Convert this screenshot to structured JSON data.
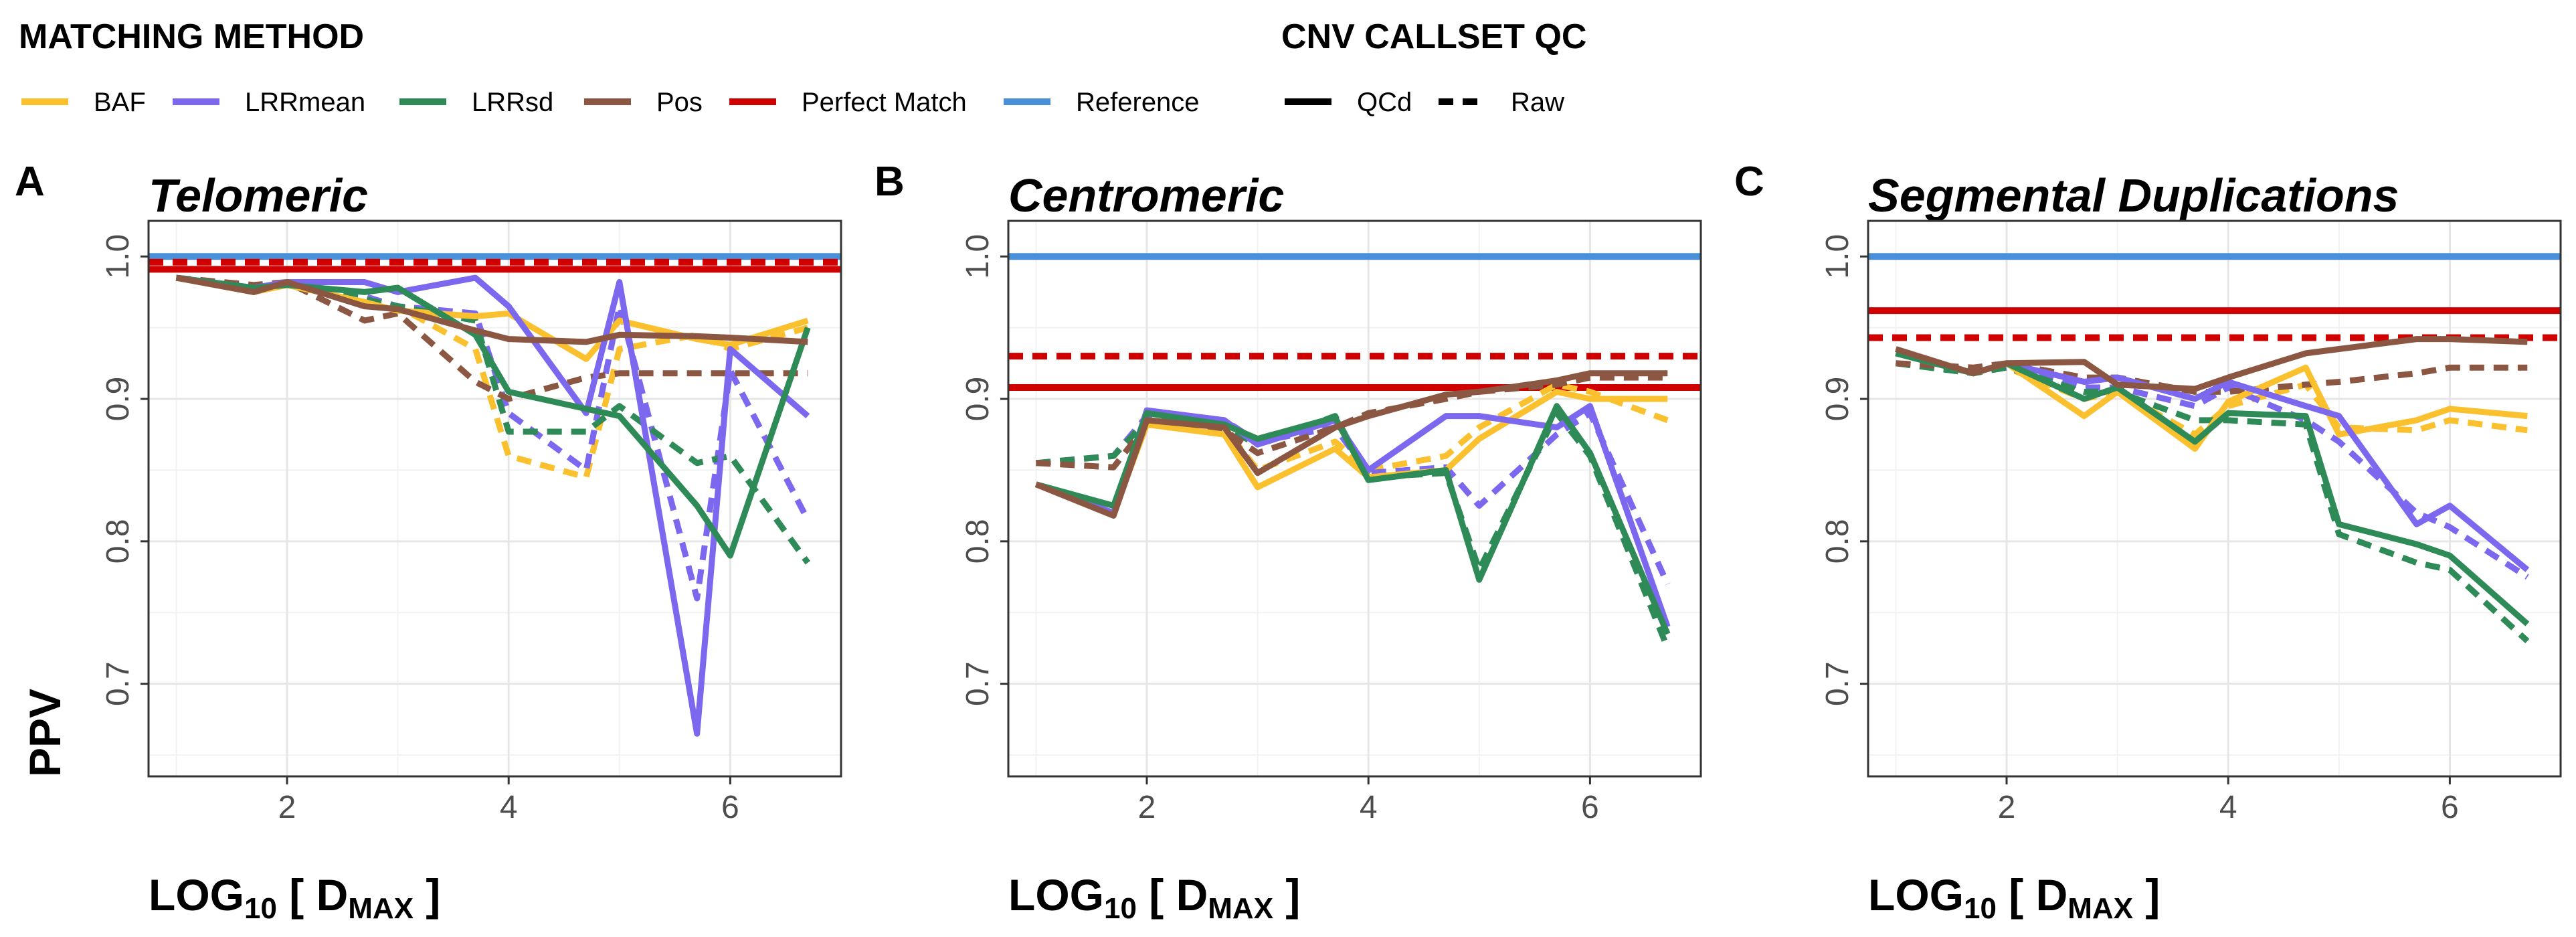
{
  "legend": {
    "method_title": "MATCHING METHOD",
    "qc_title": "CNV CALLSET QC",
    "methods": [
      {
        "label": "BAF",
        "color": "#FBC02D"
      },
      {
        "label": "LRRmean",
        "color": "#7B68EE"
      },
      {
        "label": "LRRsd",
        "color": "#2E8B57"
      },
      {
        "label": "Pos",
        "color": "#8B5742"
      },
      {
        "label": "Perfect Match",
        "color": "#D10000"
      },
      {
        "label": "Reference",
        "color": "#4A90D9"
      }
    ],
    "linetypes": [
      {
        "label": "QCd",
        "style": "solid"
      },
      {
        "label": "Raw",
        "style": "dashed"
      }
    ]
  },
  "ylabel": "PPV",
  "xlabel": {
    "main": "LOG",
    "sub": "10",
    "bracket_open": " [ D",
    "sub2": "MAX",
    "bracket_close": " ]"
  },
  "chart_data": [
    {
      "type": "line",
      "panel": "A",
      "title": "Telomeric",
      "xlim": [
        0.75,
        7.0
      ],
      "ylim": [
        0.635,
        1.025
      ],
      "x_ticks": [
        2,
        4,
        6
      ],
      "y_ticks": [
        0.7,
        0.8,
        0.9,
        1.0
      ],
      "y_tick_labels": [
        "0.7",
        "0.8",
        "0.9",
        "1.0"
      ],
      "grid": true,
      "reference_lines": [
        {
          "name": "Reference",
          "y": 1.0,
          "style": "solid"
        },
        {
          "name": "Perfect Match",
          "y": 0.991,
          "style": "solid"
        },
        {
          "name": "Perfect Match",
          "y": 0.996,
          "style": "dashed"
        }
      ],
      "series": [
        {
          "name": "BAF",
          "style": "dashed",
          "x": [
            1.0,
            1.7,
            2.0,
            2.7,
            3.0,
            3.7,
            4.0,
            4.7,
            5.0,
            5.7,
            6.0,
            6.7
          ],
          "y": [
            0.985,
            0.978,
            0.98,
            0.968,
            0.965,
            0.935,
            0.86,
            0.845,
            0.935,
            0.945,
            0.935,
            0.95
          ]
        },
        {
          "name": "LRRmean",
          "style": "dashed",
          "x": [
            1.0,
            1.7,
            2.0,
            2.7,
            3.0,
            3.7,
            4.0,
            4.7,
            5.0,
            5.7,
            6.0,
            6.7
          ],
          "y": [
            0.985,
            0.978,
            0.98,
            0.972,
            0.965,
            0.96,
            0.89,
            0.85,
            0.965,
            0.76,
            0.92,
            0.815
          ]
        },
        {
          "name": "LRRsd",
          "style": "dashed",
          "x": [
            1.0,
            1.7,
            2.0,
            2.7,
            3.0,
            3.7,
            4.0,
            4.7,
            5.0,
            5.7,
            6.0,
            6.7
          ],
          "y": [
            0.985,
            0.978,
            0.98,
            0.97,
            0.965,
            0.955,
            0.877,
            0.877,
            0.895,
            0.855,
            0.86,
            0.785
          ]
        },
        {
          "name": "Pos",
          "style": "dashed",
          "x": [
            1.0,
            1.7,
            2.0,
            2.7,
            3.0,
            3.7,
            4.0,
            4.7,
            5.0,
            5.7,
            6.0,
            6.7
          ],
          "y": [
            0.985,
            0.98,
            0.982,
            0.955,
            0.96,
            0.912,
            0.9,
            0.915,
            0.918,
            0.918,
            0.918,
            0.918
          ]
        },
        {
          "name": "BAF",
          "style": "solid",
          "x": [
            1.0,
            1.7,
            2.0,
            2.7,
            3.0,
            3.7,
            4.0,
            4.7,
            5.0,
            5.7,
            6.0,
            6.7
          ],
          "y": [
            0.985,
            0.975,
            0.98,
            0.968,
            0.962,
            0.958,
            0.96,
            0.928,
            0.955,
            0.942,
            0.938,
            0.955
          ]
        },
        {
          "name": "LRRmean",
          "style": "solid",
          "x": [
            1.0,
            1.7,
            2.0,
            2.7,
            3.0,
            3.7,
            4.0,
            4.7,
            5.0,
            5.7,
            6.0,
            6.7
          ],
          "y": [
            0.985,
            0.978,
            0.982,
            0.982,
            0.975,
            0.985,
            0.965,
            0.89,
            0.982,
            0.665,
            0.935,
            0.888
          ]
        },
        {
          "name": "LRRsd",
          "style": "solid",
          "x": [
            1.0,
            1.7,
            2.0,
            2.7,
            3.0,
            3.7,
            4.0,
            4.7,
            5.0,
            5.7,
            6.0,
            6.7
          ],
          "y": [
            0.985,
            0.978,
            0.98,
            0.975,
            0.978,
            0.945,
            0.905,
            0.893,
            0.888,
            0.825,
            0.79,
            0.95
          ]
        },
        {
          "name": "Pos",
          "style": "solid",
          "x": [
            1.0,
            1.7,
            2.0,
            2.7,
            3.0,
            3.7,
            4.0,
            4.7,
            5.0,
            5.7,
            6.0,
            6.7
          ],
          "y": [
            0.985,
            0.975,
            0.982,
            0.965,
            0.963,
            0.948,
            0.942,
            0.94,
            0.945,
            0.944,
            0.943,
            0.94
          ]
        }
      ]
    },
    {
      "type": "line",
      "panel": "B",
      "title": "Centromeric",
      "xlim": [
        0.75,
        7.0
      ],
      "ylim": [
        0.635,
        1.025
      ],
      "x_ticks": [
        2,
        4,
        6
      ],
      "y_ticks": [
        0.7,
        0.8,
        0.9,
        1.0
      ],
      "y_tick_labels": [
        "0.7",
        "0.8",
        "0.9",
        "1.0"
      ],
      "grid": true,
      "reference_lines": [
        {
          "name": "Reference",
          "y": 1.0,
          "style": "solid"
        },
        {
          "name": "Perfect Match",
          "y": 0.908,
          "style": "solid"
        },
        {
          "name": "Perfect Match",
          "y": 0.93,
          "style": "dashed"
        }
      ],
      "series": [
        {
          "name": "BAF",
          "style": "dashed",
          "x": [
            1.0,
            1.7,
            2.0,
            2.7,
            3.0,
            3.7,
            4.0,
            4.7,
            5.0,
            5.7,
            6.0,
            6.7
          ],
          "y": [
            0.855,
            0.86,
            0.885,
            0.88,
            0.85,
            0.87,
            0.85,
            0.86,
            0.88,
            0.91,
            0.905,
            0.885
          ]
        },
        {
          "name": "LRRmean",
          "style": "dashed",
          "x": [
            1.0,
            1.7,
            2.0,
            2.7,
            3.0,
            3.7,
            4.0,
            4.7,
            5.0,
            5.7,
            6.0,
            6.7
          ],
          "y": [
            0.855,
            0.86,
            0.888,
            0.885,
            0.87,
            0.88,
            0.848,
            0.852,
            0.825,
            0.875,
            0.89,
            0.77
          ]
        },
        {
          "name": "LRRsd",
          "style": "dashed",
          "x": [
            1.0,
            1.7,
            2.0,
            2.7,
            3.0,
            3.7,
            4.0,
            4.7,
            5.0,
            5.7,
            6.0,
            6.7
          ],
          "y": [
            0.855,
            0.86,
            0.885,
            0.88,
            0.868,
            0.888,
            0.845,
            0.848,
            0.78,
            0.89,
            0.86,
            0.725
          ]
        },
        {
          "name": "Pos",
          "style": "dashed",
          "x": [
            1.0,
            1.7,
            2.0,
            2.7,
            3.0,
            3.7,
            4.0,
            4.7,
            5.0,
            5.7,
            6.0,
            6.7
          ],
          "y": [
            0.855,
            0.852,
            0.882,
            0.878,
            0.862,
            0.88,
            0.89,
            0.9,
            0.905,
            0.91,
            0.915,
            0.915
          ]
        },
        {
          "name": "BAF",
          "style": "solid",
          "x": [
            1.0,
            1.7,
            2.0,
            2.7,
            3.0,
            3.7,
            4.0,
            4.7,
            5.0,
            5.7,
            6.0,
            6.7
          ],
          "y": [
            0.84,
            0.82,
            0.882,
            0.875,
            0.838,
            0.865,
            0.845,
            0.85,
            0.872,
            0.905,
            0.9,
            0.9
          ]
        },
        {
          "name": "LRRmean",
          "style": "solid",
          "x": [
            1.0,
            1.7,
            2.0,
            2.7,
            3.0,
            3.7,
            4.0,
            4.7,
            5.0,
            5.7,
            6.0,
            6.7
          ],
          "y": [
            0.84,
            0.82,
            0.892,
            0.885,
            0.868,
            0.885,
            0.85,
            0.888,
            0.888,
            0.88,
            0.895,
            0.74
          ]
        },
        {
          "name": "LRRsd",
          "style": "solid",
          "x": [
            1.0,
            1.7,
            2.0,
            2.7,
            3.0,
            3.7,
            4.0,
            4.7,
            5.0,
            5.7,
            6.0,
            6.7
          ],
          "y": [
            0.84,
            0.825,
            0.89,
            0.882,
            0.872,
            0.887,
            0.843,
            0.85,
            0.773,
            0.895,
            0.862,
            0.735
          ]
        },
        {
          "name": "Pos",
          "style": "solid",
          "x": [
            1.0,
            1.7,
            2.0,
            2.7,
            3.0,
            3.7,
            4.0,
            4.7,
            5.0,
            5.7,
            6.0,
            6.7
          ],
          "y": [
            0.84,
            0.818,
            0.885,
            0.88,
            0.848,
            0.88,
            0.888,
            0.903,
            0.905,
            0.913,
            0.918,
            0.918
          ]
        }
      ]
    },
    {
      "type": "line",
      "panel": "C",
      "title": "Segmental Duplications",
      "xlim": [
        0.75,
        7.0
      ],
      "ylim": [
        0.635,
        1.025
      ],
      "x_ticks": [
        2,
        4,
        6
      ],
      "y_ticks": [
        0.7,
        0.8,
        0.9,
        1.0
      ],
      "y_tick_labels": [
        "0.7",
        "0.8",
        "0.9",
        "1.0"
      ],
      "grid": true,
      "reference_lines": [
        {
          "name": "Reference",
          "y": 1.0,
          "style": "solid"
        },
        {
          "name": "Perfect Match",
          "y": 0.962,
          "style": "solid"
        },
        {
          "name": "Perfect Match",
          "y": 0.943,
          "style": "dashed"
        }
      ],
      "series": [
        {
          "name": "BAF",
          "style": "dashed",
          "x": [
            1.0,
            1.7,
            2.0,
            2.7,
            3.0,
            3.7,
            4.0,
            4.7,
            5.0,
            5.7,
            6.0,
            6.7
          ],
          "y": [
            0.925,
            0.92,
            0.922,
            0.9,
            0.905,
            0.875,
            0.895,
            0.91,
            0.88,
            0.878,
            0.885,
            0.878
          ]
        },
        {
          "name": "LRRmean",
          "style": "dashed",
          "x": [
            1.0,
            1.7,
            2.0,
            2.7,
            3.0,
            3.7,
            4.0,
            4.7,
            5.0,
            5.7,
            6.0,
            6.7
          ],
          "y": [
            0.925,
            0.92,
            0.922,
            0.908,
            0.908,
            0.895,
            0.908,
            0.885,
            0.87,
            0.82,
            0.81,
            0.775
          ]
        },
        {
          "name": "LRRsd",
          "style": "dashed",
          "x": [
            1.0,
            1.7,
            2.0,
            2.7,
            3.0,
            3.7,
            4.0,
            4.7,
            5.0,
            5.7,
            6.0,
            6.7
          ],
          "y": [
            0.925,
            0.918,
            0.922,
            0.905,
            0.905,
            0.885,
            0.885,
            0.882,
            0.805,
            0.785,
            0.78,
            0.73
          ]
        },
        {
          "name": "Pos",
          "style": "dashed",
          "x": [
            1.0,
            1.7,
            2.0,
            2.7,
            3.0,
            3.7,
            4.0,
            4.7,
            5.0,
            5.7,
            6.0,
            6.7
          ],
          "y": [
            0.925,
            0.922,
            0.925,
            0.915,
            0.915,
            0.905,
            0.905,
            0.91,
            0.912,
            0.918,
            0.922,
            0.922
          ]
        },
        {
          "name": "BAF",
          "style": "solid",
          "x": [
            1.0,
            1.7,
            2.0,
            2.7,
            3.0,
            3.7,
            4.0,
            4.7,
            5.0,
            5.7,
            6.0,
            6.7
          ],
          "y": [
            0.932,
            0.918,
            0.925,
            0.888,
            0.905,
            0.865,
            0.898,
            0.922,
            0.875,
            0.885,
            0.893,
            0.888
          ]
        },
        {
          "name": "LRRmean",
          "style": "solid",
          "x": [
            1.0,
            1.7,
            2.0,
            2.7,
            3.0,
            3.7,
            4.0,
            4.7,
            5.0,
            5.7,
            6.0,
            6.7
          ],
          "y": [
            0.932,
            0.918,
            0.925,
            0.912,
            0.915,
            0.9,
            0.912,
            0.895,
            0.888,
            0.812,
            0.825,
            0.78
          ]
        },
        {
          "name": "LRRsd",
          "style": "solid",
          "x": [
            1.0,
            1.7,
            2.0,
            2.7,
            3.0,
            3.7,
            4.0,
            4.7,
            5.0,
            5.7,
            6.0,
            6.7
          ],
          "y": [
            0.932,
            0.918,
            0.925,
            0.9,
            0.908,
            0.87,
            0.89,
            0.888,
            0.812,
            0.798,
            0.79,
            0.742
          ]
        },
        {
          "name": "Pos",
          "style": "solid",
          "x": [
            1.0,
            1.7,
            2.0,
            2.7,
            3.0,
            3.7,
            4.0,
            4.7,
            5.0,
            5.7,
            6.0,
            6.7
          ],
          "y": [
            0.935,
            0.918,
            0.925,
            0.926,
            0.91,
            0.907,
            0.915,
            0.932,
            0.935,
            0.942,
            0.942,
            0.94
          ]
        }
      ]
    }
  ]
}
